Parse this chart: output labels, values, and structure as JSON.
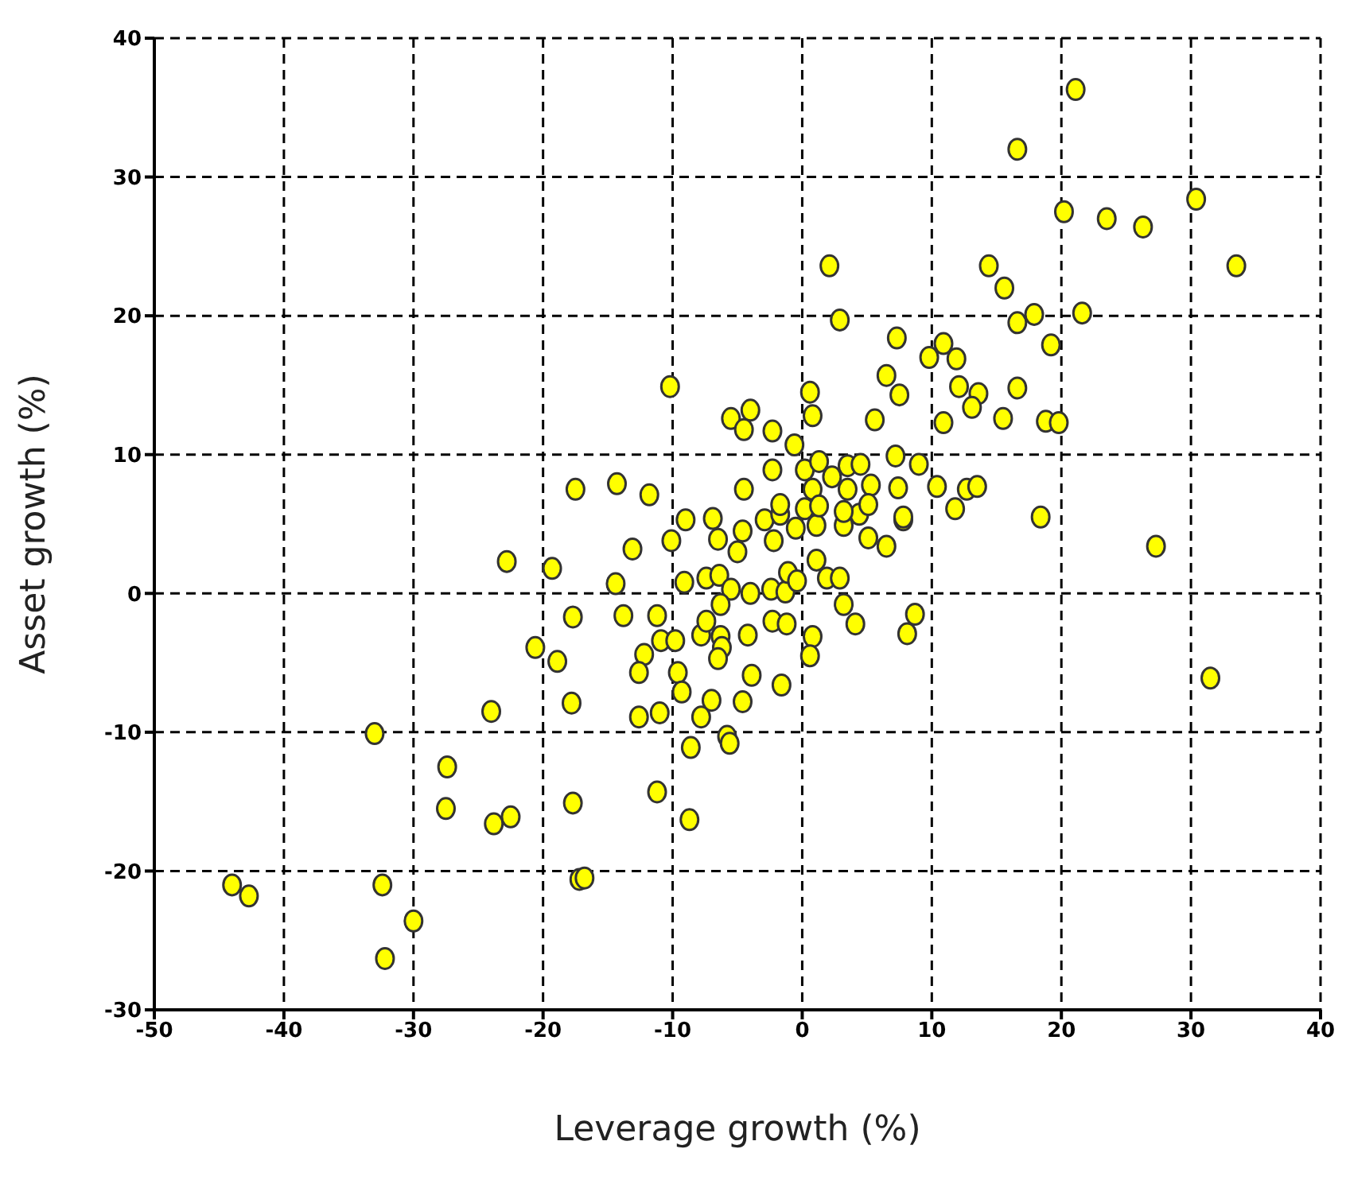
{
  "chart_data": {
    "type": "scatter",
    "xlabel": "Leverage growth (%)",
    "ylabel": "Asset growth (%)",
    "xlim": [
      -50,
      40
    ],
    "xticks": [
      -50,
      -40,
      -30,
      -20,
      -10,
      0,
      10,
      20,
      30,
      40
    ],
    "ylim": [
      -30,
      40
    ],
    "yticks": [
      -30,
      -20,
      -10,
      0,
      10,
      20,
      30,
      40
    ],
    "grid": true,
    "marker": "circle",
    "series": [
      {
        "color": "#ffff00",
        "x": [
          -22.8,
          -19.3,
          -20.6,
          -24,
          -33,
          -27.4,
          -27.5,
          -23.8,
          -22.5,
          -44,
          -42.7,
          -32.4,
          -30,
          -32.2,
          -17.7,
          -18.9,
          -17.8,
          -17.7,
          -17.2,
          -16.8,
          -13.1,
          -10.1,
          -9,
          -6.9,
          -4.6,
          -2.9,
          -14.4,
          -9.1,
          -7.4,
          -6.4,
          -5.5,
          -6.5,
          -5,
          -4,
          -13.8,
          -11.2,
          -12.2,
          -10.9,
          -9.8,
          -12.6,
          -9.6,
          -9.3,
          -12.6,
          -11,
          -7.8,
          -6.3,
          -6.2,
          -6.5,
          -7.4,
          -6.3,
          -4.2,
          -3.9,
          -4.6,
          -7,
          -7.8,
          -8.6,
          -5.8,
          -5.6,
          -11.2,
          -8.7,
          -1.6,
          -2.4,
          -1.3,
          -1.1,
          -2.3,
          -1.2,
          -0.4,
          -2.2,
          -0.5,
          1.1,
          1.9,
          2.9,
          3.2,
          4.1,
          0.8,
          0.6,
          8.1,
          8.7,
          5.1,
          6.5,
          7.8,
          1.1,
          3.2,
          4.4,
          -1.7,
          2.1,
          2.9,
          7.3,
          9.8,
          6.5,
          7.5,
          5.6,
          -10.2,
          0.6,
          0.8,
          -5.5,
          -4,
          -4.5,
          -2.3,
          -0.6,
          -17.5,
          -14.3,
          -11.8,
          -4.5,
          -2.3,
          0.2,
          1.3,
          2.3,
          3.5,
          4.5,
          7.2,
          9,
          0.8,
          3.5,
          5.3,
          7.4,
          -1.7,
          0.2,
          1.3,
          3.2,
          5.1,
          7.8,
          21.1,
          16.6,
          20.2,
          23.5,
          26.3,
          30.4,
          33.5,
          14.4,
          15.6,
          16.6,
          17.9,
          21.6,
          19.2,
          10.9,
          11.9,
          12.1,
          13.6,
          13.1,
          16.6,
          10.9,
          15.5,
          18.8,
          19.8,
          10.4,
          12.7,
          13.5,
          11.8,
          18.4,
          27.3,
          31.5
        ],
        "values": [
          2.3,
          1.8,
          -3.9,
          -8.5,
          -10.1,
          -12.5,
          -15.5,
          -16.6,
          -16.1,
          -21,
          -21.8,
          -21,
          -23.6,
          -26.3,
          -1.7,
          -4.9,
          -7.9,
          -15.1,
          -20.6,
          -20.5,
          3.2,
          3.8,
          5.3,
          5.4,
          4.5,
          5.3,
          0.7,
          0.8,
          1.1,
          1.3,
          0.3,
          3.9,
          3,
          0,
          -1.6,
          -1.6,
          -4.4,
          -3.4,
          -3.4,
          -5.7,
          -5.7,
          -7.1,
          -8.9,
          -8.6,
          -3,
          -3.1,
          -3.9,
          -4.7,
          -2,
          -0.8,
          -3,
          -5.9,
          -7.8,
          -7.7,
          -8.9,
          -11.1,
          -10.3,
          -10.8,
          -14.3,
          -16.3,
          -6.6,
          0.3,
          0.1,
          1.5,
          -2,
          -2.2,
          0.9,
          3.8,
          4.7,
          2.4,
          1.1,
          1.1,
          -0.8,
          -2.2,
          -3.1,
          -4.5,
          -2.9,
          -1.5,
          4,
          3.4,
          5.3,
          4.9,
          4.9,
          5.7,
          5.7,
          23.6,
          19.7,
          18.4,
          17,
          15.7,
          14.3,
          12.5,
          14.9,
          14.5,
          12.8,
          12.6,
          13.2,
          11.8,
          11.7,
          10.7,
          7.5,
          7.9,
          7.1,
          7.5,
          8.9,
          8.9,
          9.5,
          8.4,
          9.2,
          9.3,
          9.9,
          9.3,
          7.5,
          7.5,
          7.8,
          7.6,
          6.4,
          6.1,
          6.3,
          5.9,
          6.4,
          5.5,
          36.3,
          32,
          27.5,
          27,
          26.4,
          28.4,
          23.6,
          23.6,
          22,
          19.5,
          20.1,
          20.2,
          17.9,
          18,
          16.9,
          14.9,
          14.4,
          13.4,
          14.8,
          12.3,
          12.6,
          12.4,
          12.3,
          7.7,
          7.5,
          7.7,
          6.1,
          5.5,
          3.4,
          -6.1
        ]
      }
    ]
  }
}
